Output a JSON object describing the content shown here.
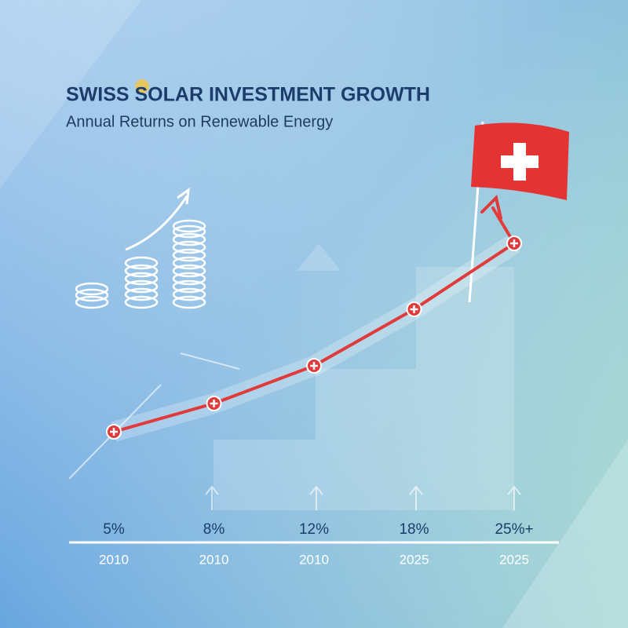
{
  "chart_data": {
    "type": "line",
    "title": "SWISS SOLAR INVESTMENT GROWTH",
    "subtitle": "Annual Returns on Renewable Energy",
    "categories": [
      "2010",
      "2010",
      "2010",
      "2025",
      "2025"
    ],
    "values": [
      5,
      8,
      12,
      18,
      25
    ],
    "value_labels": [
      "5%",
      "8%",
      "12%",
      "18%",
      "25%+"
    ],
    "color": "#e03a3a"
  }
}
